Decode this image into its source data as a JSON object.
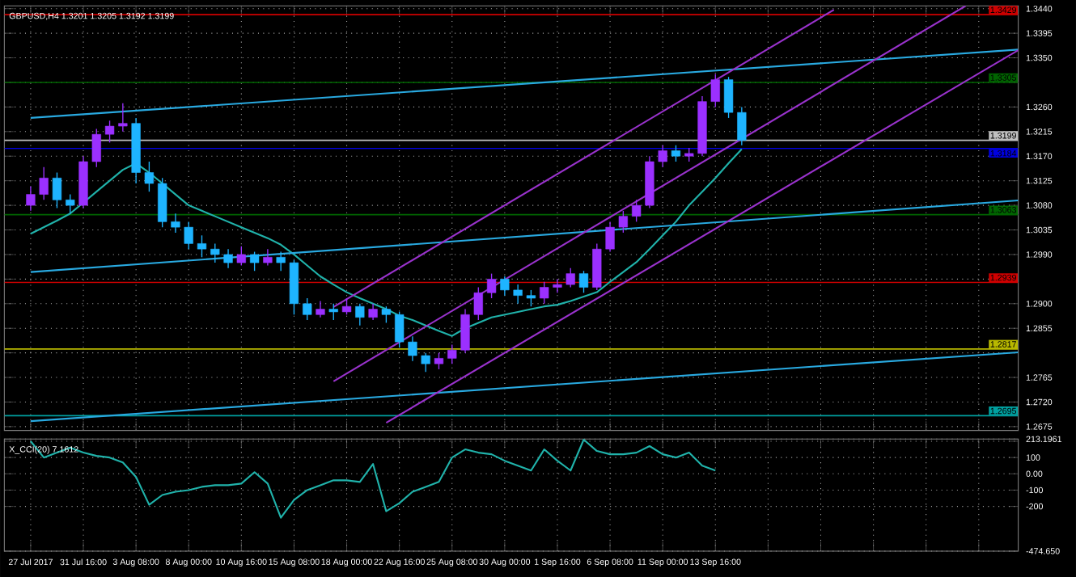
{
  "chart_data": [
    {
      "type": "candlestick",
      "title": "GBPUSD,H4 1.3201 1.3205 1.3192 1.3199",
      "categories": [
        null,
        null,
        null,
        null,
        null,
        null,
        null,
        null,
        null,
        null,
        null,
        null,
        null,
        null,
        null,
        null,
        null,
        null,
        null,
        null,
        null,
        null,
        null,
        null,
        null,
        null,
        null,
        null,
        null,
        null,
        null,
        null,
        null,
        null,
        null,
        null,
        null,
        null,
        null,
        null,
        null,
        null,
        null,
        null,
        null,
        null,
        null,
        null,
        null,
        null,
        null,
        null,
        null,
        null,
        null,
        null,
        null,
        null,
        null,
        null,
        null,
        null,
        null,
        null,
        null,
        null,
        null,
        null,
        null,
        null,
        null,
        null,
        null,
        null,
        null,
        null
      ],
      "ohlc": [
        [
          1.308,
          1.3115,
          1.307,
          1.31
        ],
        [
          1.31,
          1.315,
          1.309,
          1.313
        ],
        [
          1.313,
          1.314,
          1.3075,
          1.309
        ],
        [
          1.309,
          1.31,
          1.3065,
          1.308
        ],
        [
          1.308,
          1.317,
          1.3075,
          1.316
        ],
        [
          1.316,
          1.322,
          1.315,
          1.321
        ],
        [
          1.321,
          1.3235,
          1.3195,
          1.3225
        ],
        [
          1.3225,
          1.3267,
          1.3215,
          1.323
        ],
        [
          1.323,
          1.324,
          1.312,
          1.314
        ],
        [
          1.314,
          1.316,
          1.3105,
          1.312
        ],
        [
          1.312,
          1.313,
          1.304,
          1.305
        ],
        [
          1.305,
          1.3065,
          1.303,
          1.304
        ],
        [
          1.304,
          1.305,
          1.3,
          1.301
        ],
        [
          1.301,
          1.3025,
          1.2985,
          1.3
        ],
        [
          1.3,
          1.301,
          1.2975,
          1.299
        ],
        [
          1.299,
          1.3,
          1.2965,
          1.2975
        ],
        [
          1.2975,
          1.3005,
          1.297,
          1.299
        ],
        [
          1.299,
          1.2995,
          1.296,
          1.2975
        ],
        [
          1.2975,
          1.3,
          1.297,
          1.2985
        ],
        [
          1.2985,
          1.2995,
          1.296,
          1.2975
        ],
        [
          1.2975,
          1.298,
          1.288,
          1.29
        ],
        [
          1.29,
          1.291,
          1.287,
          1.288
        ],
        [
          1.288,
          1.2905,
          1.2875,
          1.289
        ],
        [
          1.289,
          1.29,
          1.287,
          1.2885
        ],
        [
          1.2885,
          1.291,
          1.288,
          1.2895
        ],
        [
          1.2895,
          1.29,
          1.286,
          1.2875
        ],
        [
          1.2875,
          1.29,
          1.287,
          1.289
        ],
        [
          1.289,
          1.2895,
          1.2865,
          1.288
        ],
        [
          1.288,
          1.2885,
          1.282,
          1.283
        ],
        [
          1.283,
          1.284,
          1.2795,
          1.2805
        ],
        [
          1.2805,
          1.281,
          1.2775,
          1.279
        ],
        [
          1.279,
          1.281,
          1.278,
          1.28
        ],
        [
          1.28,
          1.2825,
          1.279,
          1.2815
        ],
        [
          1.2815,
          1.289,
          1.281,
          1.288
        ],
        [
          1.288,
          1.293,
          1.287,
          1.292
        ],
        [
          1.292,
          1.2955,
          1.291,
          1.2945
        ],
        [
          1.2945,
          1.295,
          1.2915,
          1.2925
        ],
        [
          1.2925,
          1.2935,
          1.29,
          1.2915
        ],
        [
          1.2915,
          1.2925,
          1.2895,
          1.291
        ],
        [
          1.291,
          1.294,
          1.29,
          1.293
        ],
        [
          1.293,
          1.2945,
          1.292,
          1.2935
        ],
        [
          1.2935,
          1.2965,
          1.293,
          1.2955
        ],
        [
          1.2955,
          1.296,
          1.292,
          1.293
        ],
        [
          1.293,
          1.301,
          1.2925,
          1.3
        ],
        [
          1.3,
          1.305,
          1.2995,
          1.304
        ],
        [
          1.304,
          1.307,
          1.303,
          1.306
        ],
        [
          1.306,
          1.309,
          1.305,
          1.308
        ],
        [
          1.308,
          1.317,
          1.3075,
          1.316
        ],
        [
          1.316,
          1.319,
          1.315,
          1.318
        ],
        [
          1.318,
          1.319,
          1.316,
          1.317
        ],
        [
          1.317,
          1.3185,
          1.316,
          1.3175
        ],
        [
          1.3175,
          1.328,
          1.317,
          1.327
        ],
        [
          1.327,
          1.332,
          1.326,
          1.331
        ],
        [
          1.331,
          1.3315,
          1.324,
          1.325
        ],
        [
          1.325,
          1.326,
          1.319,
          1.3199
        ],
        null,
        null,
        null,
        null,
        null,
        null,
        null,
        null,
        null,
        null,
        null,
        null,
        null,
        null,
        null,
        null,
        null,
        null,
        null,
        null,
        null
      ],
      "colors": [
        "#9b30ff",
        "#9b30ff",
        "#1eb4ff",
        "#1eb4ff",
        "#9b30ff",
        "#9b30ff",
        "#9b30ff",
        "#9b30ff",
        "#1eb4ff",
        "#1eb4ff",
        "#1eb4ff",
        "#1eb4ff",
        "#1eb4ff",
        "#1eb4ff",
        "#1eb4ff",
        "#1eb4ff",
        "#9b30ff",
        "#1eb4ff",
        "#9b30ff",
        "#1eb4ff",
        "#1eb4ff",
        "#1eb4ff",
        "#9b30ff",
        "#1eb4ff",
        "#9b30ff",
        "#1eb4ff",
        "#9b30ff",
        "#1eb4ff",
        "#1eb4ff",
        "#1eb4ff",
        "#1eb4ff",
        "#9b30ff",
        "#9b30ff",
        "#9b30ff",
        "#9b30ff",
        "#9b30ff",
        "#1eb4ff",
        "#1eb4ff",
        "#1eb4ff",
        "#9b30ff",
        "#9b30ff",
        "#9b30ff",
        "#1eb4ff",
        "#9b30ff",
        "#9b30ff",
        "#9b30ff",
        "#9b30ff",
        "#9b30ff",
        "#9b30ff",
        "#1eb4ff",
        "#9b30ff",
        "#9b30ff",
        "#9b30ff",
        "#1eb4ff",
        "#1eb4ff",
        null,
        null,
        null,
        null,
        null,
        null,
        null,
        null,
        null,
        null,
        null,
        null,
        null,
        null,
        null,
        null,
        null,
        null,
        null,
        null,
        null
      ],
      "series": [
        {
          "type": "line",
          "color": "#20b2aa",
          "values": [
            1.3028,
            1.304,
            1.3052,
            1.3065,
            1.3085,
            1.3105,
            1.3125,
            1.3145,
            1.3157,
            1.314,
            1.312,
            1.31,
            1.308,
            1.307,
            1.306,
            1.305,
            1.304,
            1.303,
            1.302,
            1.3008,
            1.299,
            1.297,
            1.295,
            1.2935,
            1.2921,
            1.291,
            1.29,
            1.289,
            1.2878,
            1.287,
            1.286,
            1.285,
            1.2841,
            1.2855,
            1.2865,
            1.2875,
            1.288,
            1.2885,
            1.289,
            1.2895,
            1.2898,
            1.2905,
            1.2913,
            1.2921,
            1.294,
            1.2958,
            1.2976,
            1.3,
            1.3025,
            1.305,
            1.308,
            1.3105,
            1.313,
            1.3157,
            1.3183,
            null,
            null,
            null,
            null,
            null,
            null,
            null,
            null,
            null,
            null,
            null,
            null,
            null,
            null,
            null,
            null,
            null,
            null,
            null,
            null,
            null
          ]
        },
        {
          "type": "line",
          "color": "#29a9e0",
          "values": [
            1.324,
            null,
            null,
            null,
            null,
            null,
            null,
            null,
            null,
            null,
            null,
            null,
            null,
            null,
            null,
            null,
            null,
            null,
            null,
            null,
            null,
            null,
            null,
            null,
            null,
            null,
            null,
            null,
            null,
            null,
            null,
            null,
            null,
            null,
            null,
            null,
            null,
            null,
            null,
            null,
            null,
            null,
            null,
            null,
            null,
            null,
            null,
            null,
            null,
            null,
            null,
            null,
            null,
            null,
            null,
            null,
            null,
            null,
            null,
            null,
            null,
            null,
            null,
            null,
            null,
            null,
            null,
            null,
            null,
            null,
            null,
            null,
            null,
            null,
            null,
            1.3365
          ]
        },
        {
          "type": "line",
          "color": "#29a9e0",
          "values": [
            1.2958,
            null,
            null,
            null,
            null,
            null,
            null,
            null,
            null,
            null,
            null,
            null,
            null,
            null,
            null,
            null,
            null,
            null,
            null,
            null,
            null,
            null,
            null,
            null,
            null,
            null,
            null,
            null,
            null,
            null,
            null,
            null,
            null,
            null,
            null,
            null,
            null,
            null,
            null,
            null,
            null,
            null,
            null,
            null,
            null,
            null,
            null,
            null,
            null,
            null,
            null,
            null,
            null,
            null,
            null,
            null,
            null,
            null,
            null,
            null,
            null,
            null,
            null,
            null,
            null,
            null,
            null,
            null,
            null,
            null,
            null,
            null,
            null,
            null,
            null,
            1.3089
          ]
        },
        {
          "type": "line",
          "color": "#29a9e0",
          "values": [
            1.2685,
            null,
            null,
            null,
            null,
            null,
            null,
            null,
            null,
            null,
            null,
            null,
            null,
            null,
            null,
            null,
            null,
            null,
            null,
            null,
            null,
            null,
            null,
            null,
            null,
            null,
            null,
            null,
            null,
            null,
            null,
            null,
            null,
            null,
            null,
            null,
            null,
            null,
            null,
            null,
            null,
            null,
            null,
            null,
            null,
            null,
            null,
            null,
            null,
            null,
            null,
            null,
            null,
            null,
            null,
            null,
            null,
            null,
            null,
            null,
            null,
            null,
            null,
            null,
            null,
            null,
            null,
            null,
            null,
            null,
            null,
            null,
            null,
            null,
            null,
            1.2811
          ]
        },
        {
          "type": "line",
          "color": "#9932cc",
          "values": [
            null,
            null,
            null,
            null,
            null,
            null,
            null,
            null,
            null,
            null,
            null,
            null,
            null,
            null,
            null,
            null,
            null,
            null,
            null,
            null,
            null,
            null,
            null,
            1.2894,
            null,
            null,
            null,
            null,
            null,
            null,
            null,
            null,
            null,
            null,
            null,
            null,
            null,
            null,
            null,
            null,
            null,
            null,
            null,
            null,
            null,
            null,
            null,
            null,
            null,
            null,
            null,
            null,
            null,
            null,
            null,
            null,
            null,
            null,
            null,
            null,
            null,
            1.3438,
            null,
            null,
            null,
            null,
            null,
            null,
            null,
            null,
            null,
            null,
            null,
            null,
            null,
            null
          ]
        },
        {
          "type": "line",
          "color": "#9932cc",
          "values": [
            null,
            null,
            null,
            null,
            null,
            null,
            null,
            null,
            null,
            null,
            null,
            null,
            null,
            null,
            null,
            null,
            null,
            null,
            null,
            null,
            null,
            null,
            null,
            1.2758,
            null,
            null,
            null,
            null,
            null,
            null,
            null,
            null,
            null,
            null,
            null,
            null,
            null,
            null,
            null,
            null,
            null,
            null,
            null,
            null,
            null,
            null,
            null,
            null,
            null,
            null,
            null,
            null,
            null,
            null,
            null,
            null,
            null,
            null,
            null,
            null,
            null,
            null,
            null,
            null,
            null,
            null,
            null,
            null,
            null,
            null,
            null,
            1.3445,
            null,
            null,
            null,
            null
          ]
        },
        {
          "type": "line",
          "color": "#9932cc",
          "values": [
            null,
            null,
            null,
            null,
            null,
            null,
            null,
            null,
            null,
            null,
            null,
            null,
            null,
            null,
            null,
            null,
            null,
            null,
            null,
            null,
            null,
            null,
            null,
            null,
            null,
            null,
            null,
            1.2682,
            null,
            null,
            null,
            null,
            null,
            null,
            null,
            null,
            null,
            null,
            null,
            null,
            null,
            null,
            null,
            null,
            null,
            null,
            null,
            null,
            null,
            null,
            null,
            null,
            null,
            null,
            null,
            null,
            null,
            null,
            null,
            null,
            null,
            null,
            null,
            null,
            null,
            null,
            null,
            null,
            null,
            null,
            null,
            null,
            null,
            null,
            null,
            1.3364
          ]
        }
      ],
      "ref_lines": [
        {
          "axis": "y",
          "value": 1.3429,
          "label": "1.3429",
          "color": "#d00000"
        },
        {
          "axis": "y",
          "value": 1.3305,
          "label": "1.3305",
          "color": "#006400"
        },
        {
          "axis": "y",
          "value": 1.3199,
          "label": "1.3199",
          "color": "#c0c0c0"
        },
        {
          "axis": "y",
          "value": 1.3184,
          "label": "1.3184",
          "color": "#0000e0"
        },
        {
          "axis": "y",
          "value": 1.3063,
          "label": "1.3063",
          "color": "#006400"
        },
        {
          "axis": "y",
          "value": 1.2939,
          "label": "1.2939",
          "color": "#d00000"
        },
        {
          "axis": "y",
          "value": 1.2817,
          "label": "1.2817",
          "color": "#b8b800"
        },
        {
          "axis": "y",
          "value": 1.2695,
          "label": "1.2695",
          "color": "#00a0a0"
        }
      ],
      "ylim": [
        1.2668,
        1.3445
      ],
      "yticks": [
        {
          "value": 1.344,
          "label": "1.3440"
        },
        1.3395,
        {
          "value": 1.335,
          "label": "1.3350"
        },
        {
          "value": 1.3305,
          "label": null
        },
        {
          "value": 1.326,
          "label": "1.3260"
        },
        1.3215,
        {
          "value": 1.317,
          "label": "1.3170"
        },
        1.3125,
        {
          "value": 1.308,
          "label": "1.3080"
        },
        1.3035,
        {
          "value": 1.299,
          "label": "1.2990"
        },
        {
          "value": 1.2945,
          "label": null
        },
        {
          "value": 1.29,
          "label": "1.2900"
        },
        1.2855,
        {
          "value": 1.281,
          "label": null
        },
        1.2765,
        {
          "value": 1.272,
          "label": "1.2720"
        },
        1.2675
      ],
      "grid": true,
      "tick_labels": "y"
    },
    {
      "type": "line",
      "title": "X_CCI(20) 7.1612",
      "categories": [
        "27 Jul 2017",
        null,
        null,
        null,
        "31 Jul 16:00",
        null,
        null,
        null,
        "3 Aug 08:00",
        null,
        null,
        null,
        "8 Aug 00:00",
        null,
        null,
        null,
        "10 Aug 16:00",
        null,
        null,
        null,
        "15 Aug 08:00",
        null,
        null,
        null,
        "18 Aug 00:00",
        null,
        null,
        null,
        "22 Aug 16:00",
        null,
        null,
        null,
        "25 Aug 08:00",
        null,
        null,
        null,
        "30 Aug 00:00",
        null,
        null,
        null,
        "1 Sep 16:00",
        null,
        null,
        null,
        "6 Sep 08:00",
        null,
        null,
        null,
        "11 Sep 00:00",
        null,
        null,
        null,
        "13 Sep 16:00",
        null,
        null,
        null,
        null,
        null,
        null,
        null,
        null,
        null,
        null,
        null,
        null,
        null,
        null,
        null,
        null,
        null,
        null,
        null,
        null,
        null,
        null,
        null
      ],
      "series": [
        {
          "color": "#20b2aa",
          "values": [
            200,
            100,
            130,
            160,
            130,
            110,
            100,
            70,
            -20,
            -190,
            -130,
            -110,
            -100,
            -80,
            -70,
            -70,
            -60,
            10,
            -60,
            -270,
            -160,
            -100,
            -70,
            -40,
            -40,
            -50,
            60,
            -230,
            -180,
            -110,
            -80,
            -50,
            100,
            150,
            130,
            120,
            80,
            50,
            20,
            150,
            80,
            20,
            210,
            140,
            120,
            120,
            130,
            170,
            120,
            100,
            130,
            50,
            20,
            null,
            null,
            null,
            null,
            null,
            null,
            null,
            null,
            null,
            null,
            null,
            null,
            null,
            null,
            null,
            null,
            null,
            null,
            null,
            null,
            null,
            null,
            null
          ]
        }
      ],
      "ylim": [
        -474.65,
        213.1961
      ],
      "yticks": [
        {
          "value": 213.1961,
          "label": "213.1961"
        },
        {
          "value": 200,
          "label": null
        },
        100,
        {
          "value": 0,
          "label": "0.00"
        },
        -100,
        -200,
        {
          "value": -474.65,
          "label": "-474.650"
        }
      ],
      "grid": true
    }
  ]
}
